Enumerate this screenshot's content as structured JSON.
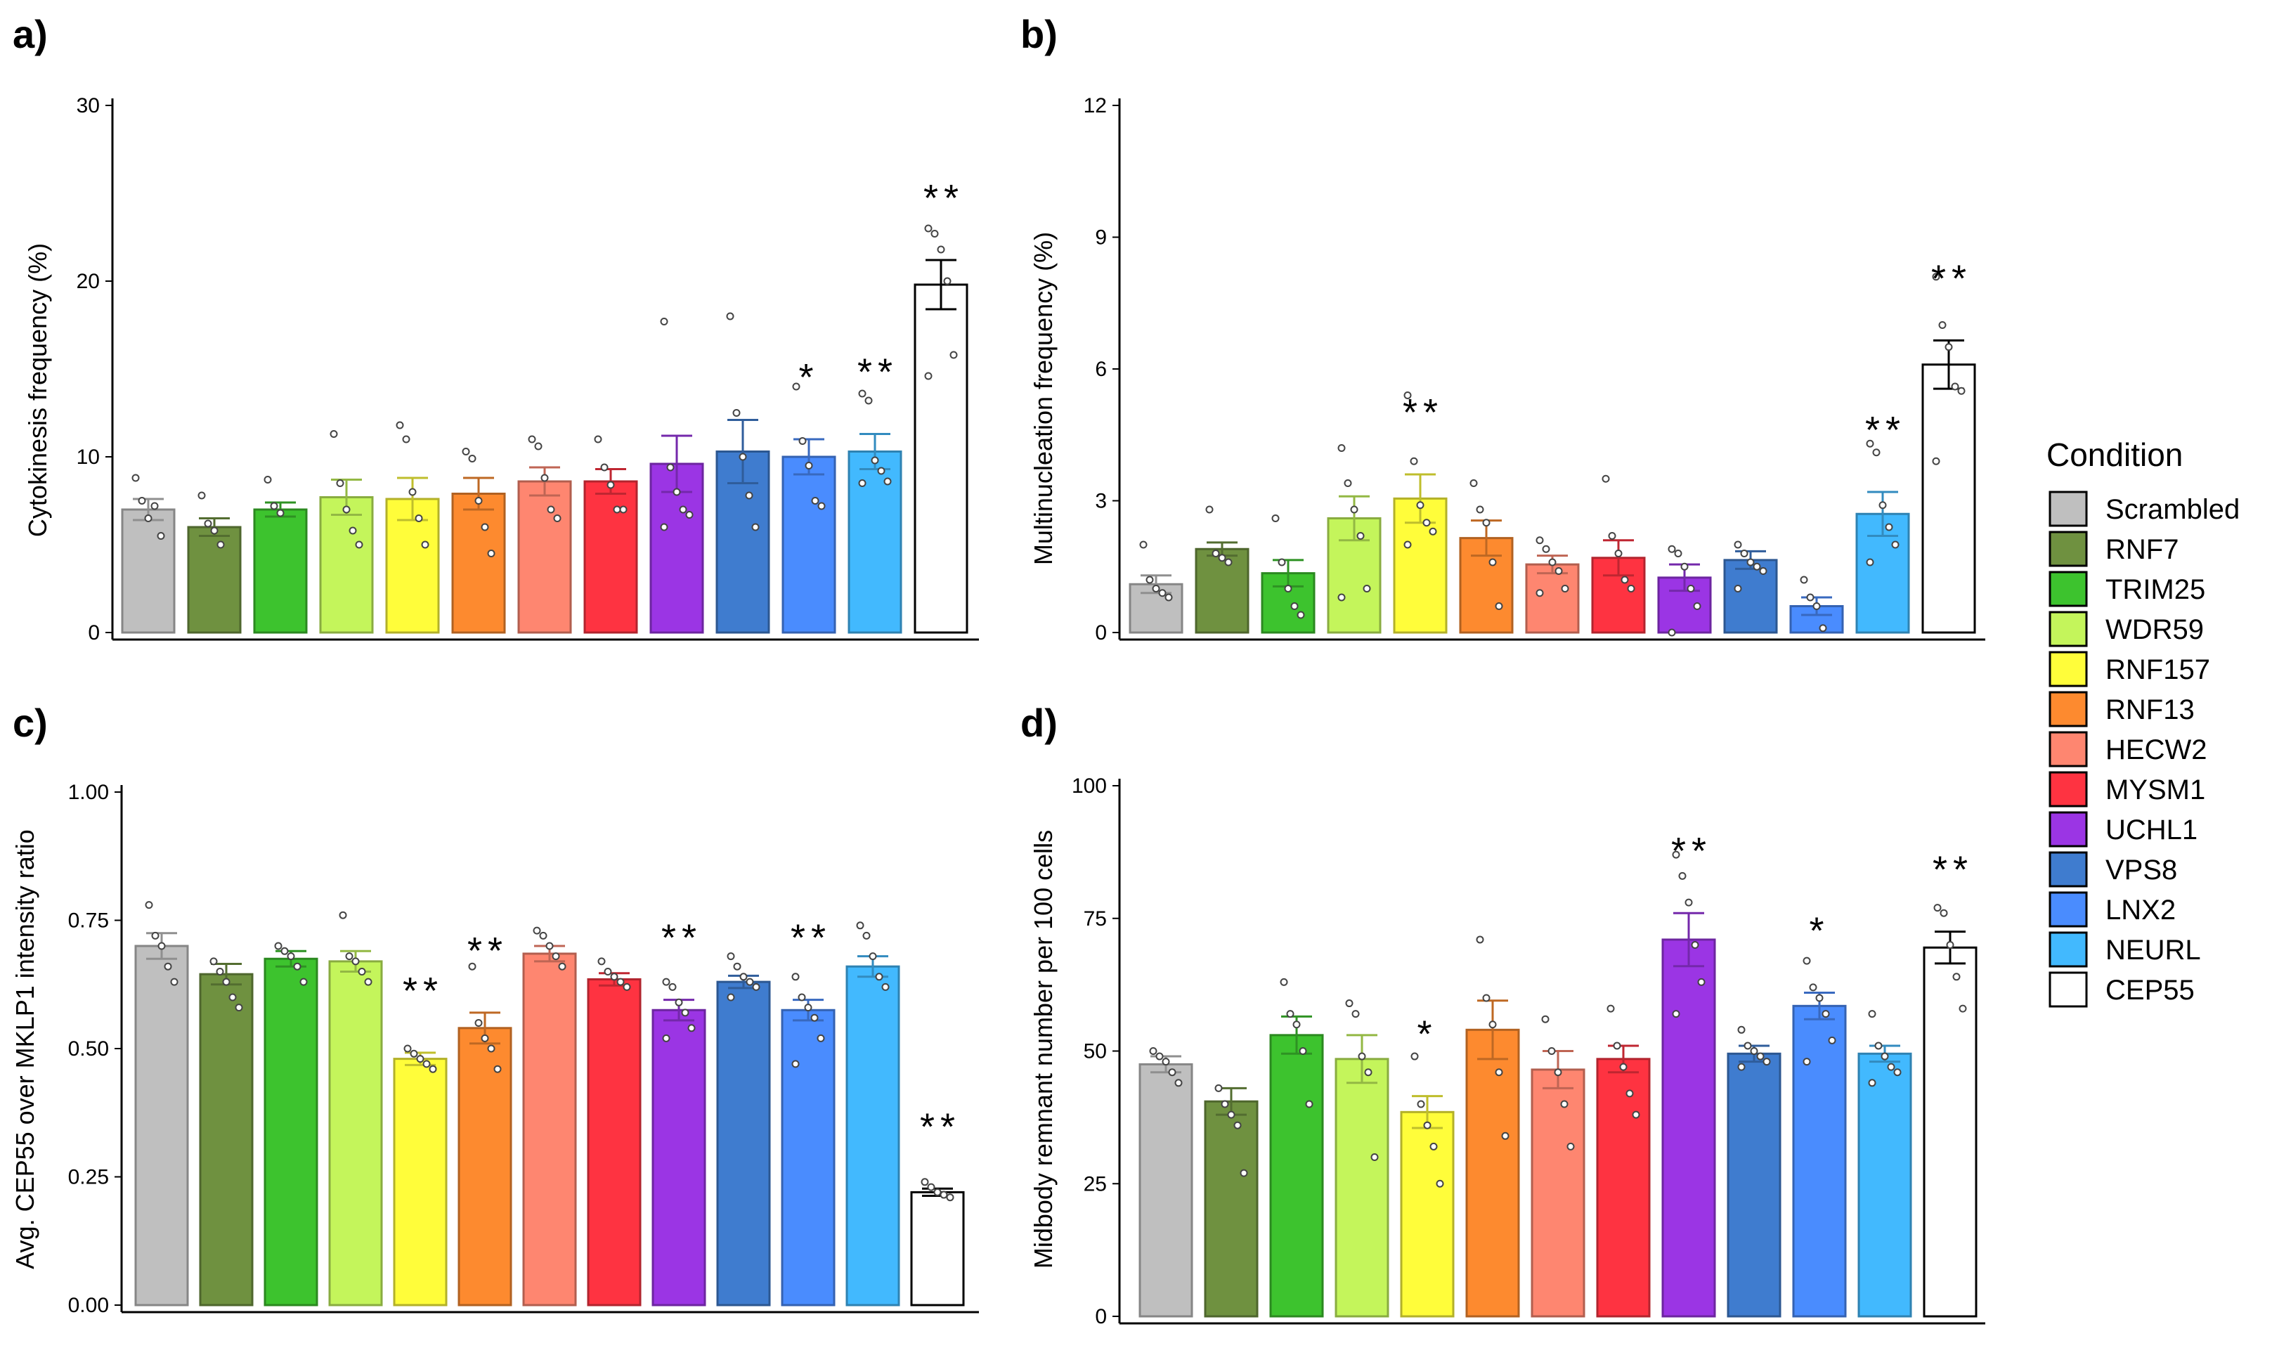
{
  "colors": {
    "Scrambled": "#bfbfbf",
    "RNF7": "#6f9140",
    "TRIM25": "#3dc32e",
    "WDR59": "#c4f55b",
    "RNF157": "#fffd3a",
    "RNF13": "#fd8a2f",
    "HECW2": "#fe8670",
    "MYSM1": "#fe3341",
    "UCHL1": "#9b35e4",
    "VPS8": "#3f7ccf",
    "LNX2": "#4a8cfe",
    "NEURL": "#42b9fe",
    "CEP55": "#ffffff"
  },
  "legend": {
    "title": "Condition",
    "items": [
      "Scrambled",
      "RNF7",
      "TRIM25",
      "WDR59",
      "RNF157",
      "RNF13",
      "HECW2",
      "MYSM1",
      "UCHL1",
      "VPS8",
      "LNX2",
      "NEURL",
      "CEP55"
    ]
  },
  "chart_data": [
    {
      "type": "bar",
      "panel_label": "a)",
      "title": "",
      "ylabel": "Cytokinesis frequency (%)",
      "xlabel": "",
      "ylim": [
        0,
        30
      ],
      "yticks": [
        "0",
        "10",
        "20",
        "30"
      ],
      "categories": [
        "Scrambled",
        "RNF7",
        "TRIM25",
        "WDR59",
        "RNF157",
        "RNF13",
        "HECW2",
        "MYSM1",
        "UCHL1",
        "VPS8",
        "LNX2",
        "NEURL",
        "CEP55"
      ],
      "values": [
        7.0,
        6.0,
        7.0,
        7.7,
        7.6,
        7.9,
        8.6,
        8.6,
        9.6,
        10.3,
        10.0,
        10.3,
        19.8
      ],
      "errors": [
        0.6,
        0.5,
        0.4,
        1.0,
        1.2,
        0.9,
        0.8,
        0.7,
        1.6,
        1.8,
        1.0,
        1.0,
        1.4
      ],
      "significance": [
        "",
        "",
        "",
        "",
        "",
        "",
        "",
        "",
        "",
        "",
        "*",
        "**",
        "**"
      ],
      "points": [
        [
          8.8,
          7.5,
          6.5,
          7.2,
          5.5
        ],
        [
          7.8,
          6.2,
          5.8,
          5.0
        ],
        [
          8.7,
          7.2,
          6.8
        ],
        [
          11.3,
          8.5,
          7.0,
          5.8,
          5.0
        ],
        [
          11.8,
          11.0,
          8.0,
          6.5,
          5.0
        ],
        [
          10.3,
          9.9,
          7.5,
          6.0,
          4.5
        ],
        [
          11.0,
          10.6,
          8.8,
          7.0,
          6.5
        ],
        [
          11.0,
          9.4,
          8.4,
          7.0,
          7.0
        ],
        [
          17.7,
          9.4,
          8.0,
          7.0,
          6.7,
          6.0
        ],
        [
          18.0,
          12.5,
          10.0,
          7.8,
          6.0
        ],
        [
          14.0,
          10.9,
          9.5,
          7.5,
          7.2
        ],
        [
          13.6,
          13.2,
          9.8,
          9.2,
          8.6,
          8.5
        ],
        [
          23.0,
          22.7,
          21.8,
          20.0,
          15.8,
          14.6
        ]
      ]
    },
    {
      "type": "bar",
      "panel_label": "b)",
      "title": "",
      "ylabel": "Multinucleation frequency (%)",
      "xlabel": "",
      "ylim": [
        0,
        12
      ],
      "yticks": [
        "0",
        "3",
        "6",
        "9",
        "12"
      ],
      "categories": [
        "Scrambled",
        "RNF7",
        "TRIM25",
        "WDR59",
        "RNF157",
        "RNF13",
        "HECW2",
        "MYSM1",
        "UCHL1",
        "VPS8",
        "LNX2",
        "NEURL",
        "CEP55"
      ],
      "values": [
        1.1,
        1.9,
        1.35,
        2.6,
        3.05,
        2.15,
        1.55,
        1.7,
        1.25,
        1.65,
        0.6,
        2.7,
        6.1
      ],
      "errors": [
        0.2,
        0.15,
        0.3,
        0.5,
        0.55,
        0.4,
        0.2,
        0.4,
        0.3,
        0.2,
        0.2,
        0.5,
        0.55
      ],
      "significance": [
        "",
        "",
        "",
        "",
        "**",
        "",
        "",
        "",
        "",
        "",
        "",
        "**",
        "**"
      ],
      "points": [
        [
          2.0,
          1.2,
          1.0,
          0.9,
          0.8
        ],
        [
          2.8,
          1.8,
          1.7,
          1.6
        ],
        [
          2.6,
          1.6,
          1.0,
          0.6,
          0.4
        ],
        [
          4.2,
          3.4,
          2.8,
          2.2,
          1.0,
          0.8
        ],
        [
          5.4,
          3.9,
          2.9,
          2.5,
          2.3,
          2.0
        ],
        [
          3.4,
          2.8,
          2.5,
          1.6,
          0.6
        ],
        [
          2.1,
          1.9,
          1.6,
          1.4,
          1.0,
          0.9
        ],
        [
          3.5,
          2.2,
          1.8,
          1.2,
          1.0
        ],
        [
          1.9,
          1.8,
          1.5,
          1.0,
          0.6,
          0.0
        ],
        [
          2.0,
          1.8,
          1.6,
          1.5,
          1.4,
          1.0
        ],
        [
          1.2,
          0.8,
          0.6,
          0.1
        ],
        [
          4.3,
          4.1,
          2.9,
          2.4,
          2.0,
          1.6
        ],
        [
          8.1,
          7.0,
          6.5,
          5.6,
          5.5,
          3.9
        ]
      ]
    },
    {
      "type": "bar",
      "panel_label": "c)",
      "title": "",
      "ylabel": "Avg. CEP55 over MKLP1 intensity ratio",
      "xlabel": "",
      "ylim": [
        0,
        1
      ],
      "yticks": [
        "0.00",
        "0.25",
        "0.50",
        "0.75",
        "1.00"
      ],
      "categories": [
        "Scrambled",
        "RNF7",
        "TRIM25",
        "WDR59",
        "RNF157",
        "RNF13",
        "HECW2",
        "MYSM1",
        "UCHL1",
        "VPS8",
        "LNX2",
        "NEURL",
        "CEP55"
      ],
      "values": [
        0.7,
        0.645,
        0.675,
        0.67,
        0.48,
        0.54,
        0.685,
        0.635,
        0.575,
        0.63,
        0.575,
        0.66,
        0.22
      ],
      "errors": [
        0.025,
        0.02,
        0.015,
        0.02,
        0.012,
        0.03,
        0.015,
        0.012,
        0.02,
        0.012,
        0.02,
        0.02,
        0.007
      ],
      "significance": [
        "",
        "",
        "",
        "",
        "**",
        "**",
        "",
        "",
        "**",
        "",
        "**",
        "",
        "**"
      ],
      "points": [
        [
          0.78,
          0.72,
          0.7,
          0.66,
          0.63
        ],
        [
          0.67,
          0.65,
          0.63,
          0.6,
          0.58
        ],
        [
          0.7,
          0.69,
          0.68,
          0.66,
          0.63
        ],
        [
          0.76,
          0.68,
          0.67,
          0.65,
          0.63
        ],
        [
          0.5,
          0.49,
          0.48,
          0.47,
          0.46
        ],
        [
          0.66,
          0.55,
          0.52,
          0.5,
          0.46
        ],
        [
          0.73,
          0.72,
          0.7,
          0.68,
          0.66
        ],
        [
          0.67,
          0.65,
          0.64,
          0.63,
          0.62
        ],
        [
          0.63,
          0.62,
          0.59,
          0.57,
          0.54,
          0.52
        ],
        [
          0.68,
          0.66,
          0.64,
          0.63,
          0.62,
          0.6
        ],
        [
          0.64,
          0.6,
          0.58,
          0.56,
          0.52,
          0.47
        ],
        [
          0.74,
          0.72,
          0.68,
          0.64,
          0.62
        ],
        [
          0.24,
          0.23,
          0.22,
          0.215,
          0.21
        ]
      ]
    },
    {
      "type": "bar",
      "panel_label": "d)",
      "title": "",
      "ylabel": "Midbody remnant number per 100 cells",
      "xlabel": "",
      "ylim": [
        0,
        100
      ],
      "yticks": [
        "0",
        "25",
        "50",
        "75",
        "100"
      ],
      "categories": [
        "Scrambled",
        "RNF7",
        "TRIM25",
        "WDR59",
        "RNF157",
        "RNF13",
        "HECW2",
        "MYSM1",
        "UCHL1",
        "VPS8",
        "LNX2",
        "NEURL",
        "CEP55"
      ],
      "values": [
        47.5,
        40.5,
        53,
        48.5,
        38.5,
        54,
        46.5,
        48.5,
        71,
        49.5,
        58.5,
        49.5,
        69.5
      ],
      "errors": [
        1.5,
        2.5,
        3.5,
        4.5,
        3.0,
        5.5,
        3.5,
        2.5,
        5.0,
        1.5,
        2.5,
        1.5,
        3.0
      ],
      "significance": [
        "",
        "",
        "",
        "",
        "*",
        "",
        "",
        "",
        "**",
        "",
        "*",
        "",
        "**"
      ],
      "points": [
        [
          50,
          49,
          48,
          46,
          44
        ],
        [
          43,
          40,
          38,
          36,
          27
        ],
        [
          63,
          57,
          55,
          50,
          40
        ],
        [
          59,
          57,
          49,
          46,
          30
        ],
        [
          49,
          40,
          36,
          32,
          25
        ],
        [
          71,
          60,
          55,
          46,
          34
        ],
        [
          56,
          50,
          46,
          40,
          32
        ],
        [
          58,
          51,
          47,
          42,
          38
        ],
        [
          87,
          83,
          78,
          70,
          63,
          57
        ],
        [
          54,
          51,
          50,
          49,
          48,
          47
        ],
        [
          67,
          62,
          60,
          57,
          52,
          48
        ],
        [
          57,
          51,
          49,
          47,
          46,
          44
        ],
        [
          77,
          76,
          70,
          64,
          58
        ]
      ]
    }
  ]
}
